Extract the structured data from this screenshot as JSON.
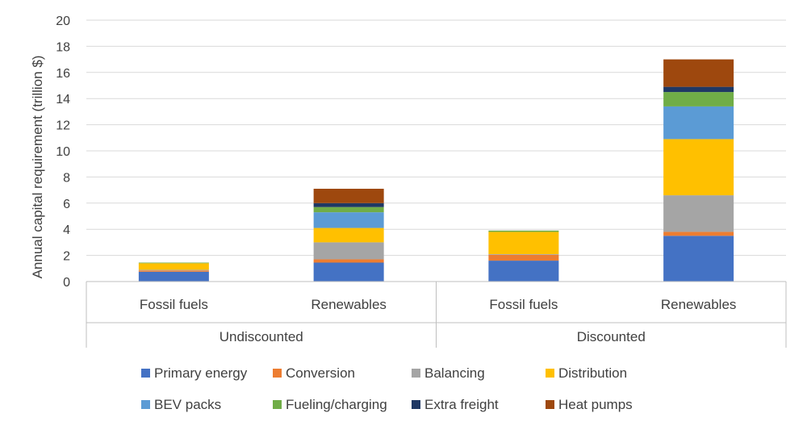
{
  "chart_data": {
    "type": "bar",
    "stacked": true,
    "ylabel": "Annual capital requirement (trillion $)",
    "xlabel": "",
    "ylim": [
      0,
      20
    ],
    "yticks": [
      0,
      2,
      4,
      6,
      8,
      10,
      12,
      14,
      16,
      18,
      20
    ],
    "grid": true,
    "legend_position": "bottom",
    "groups": [
      {
        "label": "Undiscounted",
        "categories": [
          "Fossil fuels",
          "Renewables"
        ]
      },
      {
        "label": "Discounted",
        "categories": [
          "Fossil fuels",
          "Renewables"
        ]
      }
    ],
    "categories": [
      "Fossil fuels",
      "Renewables",
      "Fossil fuels",
      "Renewables"
    ],
    "series": [
      {
        "name": "Primary energy",
        "color": "#4472C4",
        "values": [
          0.75,
          1.45,
          1.6,
          3.5
        ]
      },
      {
        "name": "Conversion",
        "color": "#ED7D31",
        "values": [
          0.1,
          0.25,
          0.45,
          0.3
        ]
      },
      {
        "name": "Balancing",
        "color": "#A5A5A5",
        "values": [
          0.05,
          1.3,
          0.05,
          2.8
        ]
      },
      {
        "name": "Distribution",
        "color": "#FFC000",
        "values": [
          0.5,
          1.1,
          1.7,
          4.3
        ]
      },
      {
        "name": "BEV packs",
        "color": "#5B9BD5",
        "values": [
          0.0,
          1.2,
          0.0,
          2.5
        ]
      },
      {
        "name": "Fueling/charging",
        "color": "#70AD47",
        "values": [
          0.05,
          0.4,
          0.1,
          1.1
        ]
      },
      {
        "name": "Extra freight",
        "color": "#1F3864",
        "values": [
          0.0,
          0.3,
          0.0,
          0.4
        ]
      },
      {
        "name": "Heat pumps",
        "color": "#9E480E",
        "values": [
          0.0,
          1.1,
          0.0,
          2.1
        ]
      }
    ]
  }
}
